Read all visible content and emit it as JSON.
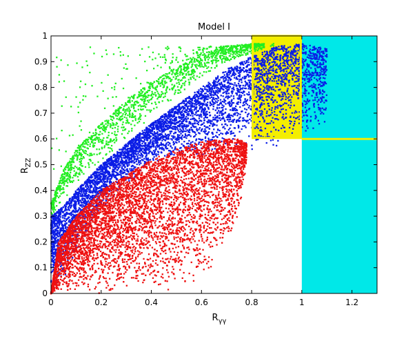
{
  "chart_data": {
    "type": "scatter",
    "title": "Model I",
    "xlabel": {
      "base": "R",
      "sub": "γγ"
    },
    "ylabel": {
      "base": "R",
      "sub": "ZZ"
    },
    "xlim": [
      0,
      1.3
    ],
    "ylim": [
      0,
      1
    ],
    "x_ticks": [
      0,
      0.2,
      0.4,
      0.6,
      0.8,
      1,
      1.2
    ],
    "x_tick_labels": [
      "0",
      "0.2",
      "0.4",
      "0.6",
      "0.8",
      "1",
      "1.2"
    ],
    "y_ticks": [
      0,
      0.1,
      0.2,
      0.3,
      0.4,
      0.5,
      0.6,
      0.7,
      0.8,
      0.9,
      1
    ],
    "y_tick_labels": [
      "0",
      "0.1",
      "0.2",
      "0.3",
      "0.4",
      "0.5",
      "0.6",
      "0.7",
      "0.8",
      "0.9",
      "1"
    ],
    "grid": false,
    "legend": "none",
    "regions": [
      {
        "kind": "excluded",
        "x": [
          1.0,
          1.3
        ],
        "y": [
          0,
          1
        ],
        "color": "#00e8e8"
      },
      {
        "kind": "favored",
        "x": [
          0.8,
          1.0
        ],
        "y": [
          0.6,
          1.0
        ],
        "color": "#f4ee00"
      },
      {
        "kind": "line",
        "x": [
          1.0,
          1.3
        ],
        "y": [
          0.6,
          0.6
        ],
        "color": "#f4ee00"
      }
    ],
    "series": [
      {
        "color": "#22ee22",
        "envelope": {
          "x": [
            0,
            0.05,
            0.1,
            0.2,
            0.3,
            0.4,
            0.5,
            0.6,
            0.7,
            0.8,
            0.85
          ],
          "y_low": [
            0.3,
            0.36,
            0.42,
            0.51,
            0.6,
            0.68,
            0.76,
            0.83,
            0.89,
            0.93,
            0.95
          ],
          "y_high": [
            0.35,
            0.48,
            0.56,
            0.66,
            0.75,
            0.82,
            0.88,
            0.93,
            0.96,
            0.97,
            0.97
          ]
        },
        "sparse_x_range": [
          0,
          0.9
        ],
        "sparse_y_range": [
          0.45,
          0.96
        ],
        "point_count": 1600
      },
      {
        "color": "#0b1de6",
        "envelope": {
          "x": [
            0,
            0.05,
            0.1,
            0.2,
            0.3,
            0.4,
            0.5,
            0.6,
            0.7,
            0.8,
            0.9,
            1.0,
            1.1
          ],
          "y_low": [
            0.0,
            0.05,
            0.15,
            0.32,
            0.42,
            0.5,
            0.52,
            0.52,
            0.55,
            0.55,
            0.57,
            0.6,
            0.65
          ],
          "y_high": [
            0.3,
            0.34,
            0.4,
            0.5,
            0.58,
            0.66,
            0.73,
            0.8,
            0.87,
            0.92,
            0.96,
            0.97,
            0.95
          ]
        },
        "point_count": 5200
      },
      {
        "color": "#ee1111",
        "envelope": {
          "x": [
            0,
            0.03,
            0.1,
            0.2,
            0.3,
            0.4,
            0.5,
            0.6,
            0.7,
            0.75,
            0.78
          ],
          "y_low": [
            0.0,
            0.0,
            0.0,
            0.0,
            0.0,
            0.0,
            0.0,
            0.05,
            0.18,
            0.3,
            0.5
          ],
          "y_high": [
            0.0,
            0.2,
            0.3,
            0.4,
            0.46,
            0.52,
            0.56,
            0.59,
            0.6,
            0.6,
            0.58
          ]
        },
        "point_count": 6000
      }
    ]
  }
}
